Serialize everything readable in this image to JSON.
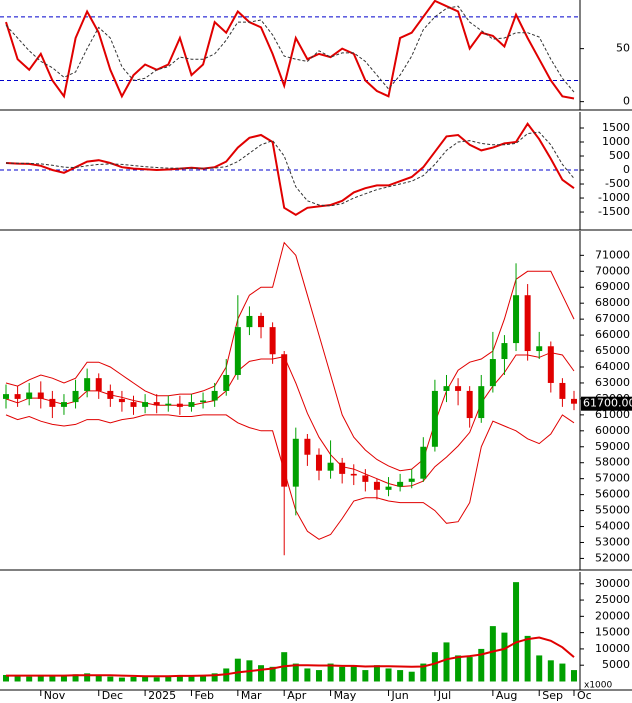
{
  "chart_data": [
    {
      "type": "line",
      "ylim": [
        -6,
        94
      ],
      "yticks": [
        0,
        50
      ],
      "reference_lines": [
        80,
        20
      ],
      "reference_color": "#0000cc",
      "series": [
        {
          "color": "#e00000",
          "style": "solid",
          "values": [
            75,
            40,
            30,
            45,
            20,
            5,
            60,
            85,
            65,
            30,
            5,
            25,
            35,
            30,
            35,
            60,
            25,
            35,
            75,
            65,
            85,
            75,
            70,
            45,
            15,
            60,
            40,
            45,
            42,
            50,
            45,
            20,
            10,
            5,
            60,
            65,
            80,
            95,
            90,
            85,
            50,
            65,
            62,
            52,
            82,
            60,
            40,
            20,
            5,
            3
          ]
        },
        {
          "color": "#333333",
          "style": "dashed",
          "values": [
            72,
            60,
            48,
            38,
            32,
            23,
            28,
            50,
            70,
            60,
            33,
            20,
            22,
            30,
            33,
            42,
            40,
            40,
            45,
            58,
            75,
            75,
            77,
            63,
            43,
            40,
            38,
            48,
            42,
            46,
            46,
            38,
            25,
            12,
            25,
            43,
            68,
            80,
            88,
            90,
            75,
            67,
            59,
            60,
            65,
            65,
            61,
            40,
            22,
            9
          ]
        }
      ]
    },
    {
      "type": "line",
      "ylim": [
        -2070,
        2000
      ],
      "yticks": [
        -1500,
        -1000,
        -500,
        0,
        500,
        1000,
        1500
      ],
      "reference_lines": [
        0
      ],
      "reference_color": "#0000cc",
      "series": [
        {
          "color": "#e00000",
          "style": "solid",
          "values": [
            250,
            230,
            220,
            150,
            0,
            -100,
            100,
            300,
            350,
            250,
            100,
            50,
            30,
            0,
            20,
            50,
            80,
            50,
            100,
            300,
            800,
            1150,
            1250,
            1000,
            -1350,
            -1600,
            -1350,
            -1300,
            -1250,
            -1100,
            -800,
            -650,
            -550,
            -550,
            -400,
            -250,
            100,
            650,
            1200,
            1250,
            900,
            700,
            800,
            950,
            1000,
            1650,
            1100,
            400,
            -350,
            -650
          ]
        },
        {
          "color": "#333333",
          "style": "dashed",
          "values": [
            250,
            240,
            235,
            220,
            170,
            100,
            90,
            150,
            200,
            220,
            200,
            160,
            120,
            90,
            70,
            60,
            65,
            60,
            70,
            120,
            300,
            600,
            900,
            1050,
            500,
            -600,
            -1100,
            -1250,
            -1280,
            -1200,
            -1000,
            -850,
            -700,
            -600,
            -500,
            -400,
            -200,
            200,
            700,
            1000,
            1050,
            950,
            900,
            900,
            950,
            1300,
            1350,
            900,
            200,
            -300
          ]
        }
      ]
    },
    {
      "type": "candlestick",
      "ylim": [
        51400,
        72400
      ],
      "yticks": [
        52000,
        53000,
        54000,
        55000,
        56000,
        57000,
        58000,
        59000,
        60000,
        61000,
        62000,
        63000,
        64000,
        65000,
        66000,
        67000,
        68000,
        69000,
        70000,
        71000
      ],
      "up_color": "#00a000",
      "down_color": "#e00000",
      "band_color": "#e00000",
      "price_label": "61700.00",
      "open": [
        62000,
        62300,
        62000,
        62400,
        62000,
        61500,
        61800,
        62500,
        63300,
        62500,
        62000,
        61800,
        61500,
        61800,
        61600,
        61700,
        61500,
        61800,
        61900,
        62500,
        63500,
        66500,
        67200,
        66500,
        64800,
        56500,
        59500,
        58500,
        57500,
        58000,
        57300,
        57200,
        56800,
        56300,
        56500,
        56800,
        57000,
        59000,
        62500,
        62800,
        62500,
        60800,
        62800,
        64500,
        65500,
        68500,
        65000,
        65300,
        63000,
        62000
      ],
      "high": [
        62900,
        62800,
        63000,
        63100,
        62500,
        62300,
        63200,
        63900,
        63600,
        62900,
        62500,
        62200,
        62300,
        62300,
        62200,
        62200,
        62300,
        62400,
        63000,
        64500,
        68500,
        67800,
        67400,
        66800,
        65000,
        60200,
        59800,
        58900,
        59400,
        58300,
        57900,
        57600,
        57000,
        57100,
        57300,
        57600,
        59600,
        63200,
        63500,
        63300,
        62800,
        63500,
        66200,
        66000,
        70500,
        69200,
        66200,
        65600,
        63300,
        62500
      ],
      "low": [
        61400,
        61500,
        61600,
        61400,
        60800,
        61000,
        61400,
        62100,
        62000,
        61500,
        61200,
        61000,
        61100,
        61100,
        61200,
        61000,
        61200,
        61400,
        61500,
        62200,
        63200,
        66000,
        65800,
        64200,
        52200,
        54700,
        57800,
        56900,
        57000,
        56700,
        56600,
        56200,
        55700,
        55900,
        56200,
        56400,
        56800,
        58700,
        61800,
        61600,
        60200,
        60500,
        62400,
        63500,
        65000,
        64400,
        64500,
        62400,
        61500,
        61300
      ],
      "close": [
        62300,
        62000,
        62400,
        62000,
        61500,
        61800,
        62500,
        63300,
        62500,
        62000,
        61800,
        61500,
        61800,
        61600,
        61700,
        61500,
        61800,
        61900,
        62500,
        63500,
        66500,
        67200,
        66500,
        64800,
        56500,
        59500,
        58500,
        57500,
        58000,
        57300,
        57200,
        56800,
        56300,
        56500,
        56800,
        57000,
        59000,
        62500,
        62800,
        62500,
        60800,
        62800,
        64500,
        65500,
        68500,
        65000,
        65300,
        63000,
        62000,
        61700
      ],
      "bands": {
        "upper": [
          63000,
          62800,
          63200,
          63500,
          63300,
          63000,
          63300,
          64300,
          64300,
          64000,
          63500,
          63000,
          62500,
          62200,
          62200,
          62300,
          62300,
          62500,
          62800,
          64000,
          67000,
          68500,
          69000,
          69000,
          71800,
          71000,
          68500,
          66000,
          63500,
          61000,
          59600,
          58800,
          58200,
          57800,
          57500,
          57600,
          58200,
          60500,
          62500,
          63800,
          64300,
          64500,
          65000,
          67000,
          69500,
          70000,
          70000,
          70000,
          68500,
          67000
        ],
        "middle": [
          62000,
          61750,
          62050,
          62050,
          61850,
          61650,
          61850,
          62500,
          62500,
          62250,
          62100,
          61900,
          61750,
          61600,
          61600,
          61600,
          61600,
          61750,
          61900,
          62500,
          63750,
          64350,
          64500,
          64500,
          64650,
          63000,
          61100,
          59600,
          58500,
          57750,
          57600,
          57300,
          57000,
          56700,
          56500,
          56550,
          56850,
          57750,
          58350,
          59050,
          59900,
          61750,
          62800,
          63650,
          64750,
          64750,
          64600,
          64900,
          64750,
          63750
        ],
        "lower": [
          61000,
          60700,
          60900,
          60600,
          60400,
          60300,
          60400,
          60700,
          60700,
          60500,
          60700,
          60800,
          61000,
          61000,
          61000,
          60900,
          60900,
          61000,
          61000,
          61000,
          60500,
          60200,
          60000,
          60000,
          57500,
          55000,
          53700,
          53200,
          53500,
          54500,
          55600,
          55800,
          55800,
          55600,
          55500,
          55500,
          55500,
          55000,
          54200,
          54300,
          55500,
          59000,
          60600,
          60300,
          60000,
          59500,
          59200,
          59800,
          61000,
          60500
        ]
      }
    },
    {
      "type": "bar",
      "ylim": [
        -2000,
        33000
      ],
      "yticks": [
        5000,
        10000,
        15000,
        20000,
        25000,
        30000
      ],
      "unit_label": "x1000",
      "color": "#00a000",
      "ma_color": "#e00000",
      "categories": [
        null,
        null,
        null,
        "Nov",
        null,
        null,
        null,
        null,
        "Dec",
        null,
        null,
        null,
        "2025",
        null,
        null,
        null,
        "Feb",
        null,
        null,
        null,
        "Mar",
        null,
        null,
        null,
        "Apr",
        null,
        null,
        null,
        "May",
        null,
        null,
        null,
        null,
        "Jun",
        null,
        null,
        null,
        "Jul",
        null,
        null,
        null,
        null,
        "Aug",
        null,
        null,
        null,
        "Sep",
        null,
        null,
        "Oc"
      ],
      "values": [
        2000,
        1800,
        1500,
        2000,
        1800,
        1600,
        2200,
        2500,
        1800,
        1500,
        1200,
        1400,
        1600,
        1300,
        1800,
        2000,
        1500,
        1800,
        2500,
        4000,
        7000,
        6500,
        5000,
        4500,
        9000,
        5500,
        4000,
        3500,
        5500,
        4500,
        5000,
        3500,
        5000,
        4000,
        3500,
        3000,
        5500,
        9000,
        12000,
        8000,
        7500,
        10000,
        17000,
        15000,
        30500,
        14000,
        8000,
        6500,
        5500,
        3500
      ],
      "ma": [
        1800,
        1800,
        1800,
        1800,
        1800,
        1800,
        1900,
        1900,
        1900,
        1900,
        1800,
        1700,
        1600,
        1600,
        1600,
        1700,
        1700,
        1800,
        1900,
        2200,
        2800,
        3200,
        3600,
        4000,
        4700,
        5000,
        5000,
        4900,
        4900,
        4800,
        4800,
        4600,
        4700,
        4700,
        4600,
        4500,
        4600,
        5500,
        6800,
        7500,
        7800,
        8300,
        9200,
        10000,
        12000,
        13000,
        13500,
        12500,
        10500,
        7500
      ]
    }
  ]
}
